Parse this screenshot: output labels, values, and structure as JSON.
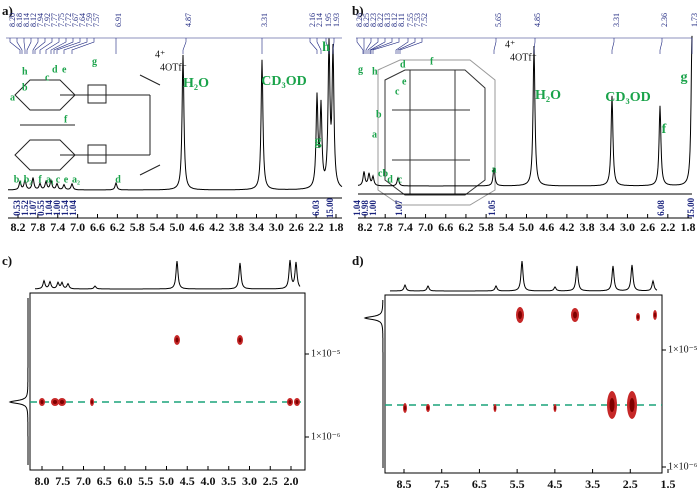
{
  "panels": [
    {
      "label": "a)",
      "shift_labels": [
        "8.20",
        "8.18",
        "8.14",
        "8.12",
        "7.94",
        "7.92",
        "7.77",
        "7.75",
        "7.72",
        "7.67",
        "7.64",
        "7.59",
        "7.57",
        "6.91",
        "4.87",
        "3.31",
        "2.16",
        "2.14",
        "1.95",
        "1.93"
      ],
      "assignments": [
        "H₂O",
        "CD₃OD",
        "g",
        "h"
      ],
      "peak_letters": [
        "b₁",
        "b₂",
        "f",
        "a₁",
        "c",
        "e",
        "a₂",
        "d"
      ],
      "structure_labels": [
        "h",
        "d",
        "e",
        "g",
        "a",
        "b",
        "f",
        "c",
        "4⁺",
        "4OTf⁻"
      ],
      "integrals": [
        "0.53",
        "1.52",
        "1.07",
        "0.55",
        "1.04",
        "1.00",
        "1.54",
        "1.04",
        "6.03",
        "15.00"
      ],
      "x_ticks": [
        "8.2",
        "7.8",
        "7.4",
        "7.0",
        "6.6",
        "6.2",
        "5.8",
        "5.4",
        "5.0",
        "4.6",
        "4.2",
        "3.8",
        "3.4",
        "3.0",
        "2.6",
        "2.2",
        "1.8"
      ]
    },
    {
      "label": "b)",
      "shift_labels": [
        "8.26",
        "8.25",
        "8.23",
        "8.22",
        "8.13",
        "8.12",
        "8.11",
        "7.55",
        "7.53",
        "7.52",
        "5.65",
        "4.85",
        "3.31",
        "2.36",
        "1.73"
      ],
      "assignments": [
        "H₂O",
        "CD₃OD",
        "f",
        "g"
      ],
      "peak_letters": [
        "cb",
        "d",
        "c",
        "a"
      ],
      "structure_labels": [
        "g",
        "h",
        "d",
        "f",
        "e",
        "c",
        "a",
        "b",
        "4⁺",
        "4OTf⁻"
      ],
      "integrals": [
        "1.04",
        "0.98",
        "1.00",
        "1.07",
        "1.05",
        "6.08",
        "15.00"
      ],
      "x_ticks": [
        "8.2",
        "7.8",
        "7.4",
        "7.0",
        "6.6",
        "6.2",
        "5.8",
        "5.4",
        "5.0",
        "4.6",
        "4.2",
        "3.8",
        "3.4",
        "3.0",
        "2.6",
        "2.2",
        "1.8"
      ]
    },
    {
      "label": "c)",
      "x_ticks": [
        "8.0",
        "7.5",
        "7.0",
        "6.5",
        "6.0",
        "5.5",
        "5.0",
        "4.5",
        "4.0",
        "3.5",
        "3.0",
        "2.5",
        "2.0"
      ],
      "y_labels": [
        "1×10⁻⁵",
        "1×10⁻⁶"
      ]
    },
    {
      "label": "d)",
      "x_ticks": [
        "8.5",
        "7.5",
        "6.5",
        "5.5",
        "4.5",
        "3.5",
        "2.5",
        "1.5"
      ],
      "y_labels": [
        "1×10⁻⁵",
        "1×10⁻⁶"
      ]
    }
  ]
}
